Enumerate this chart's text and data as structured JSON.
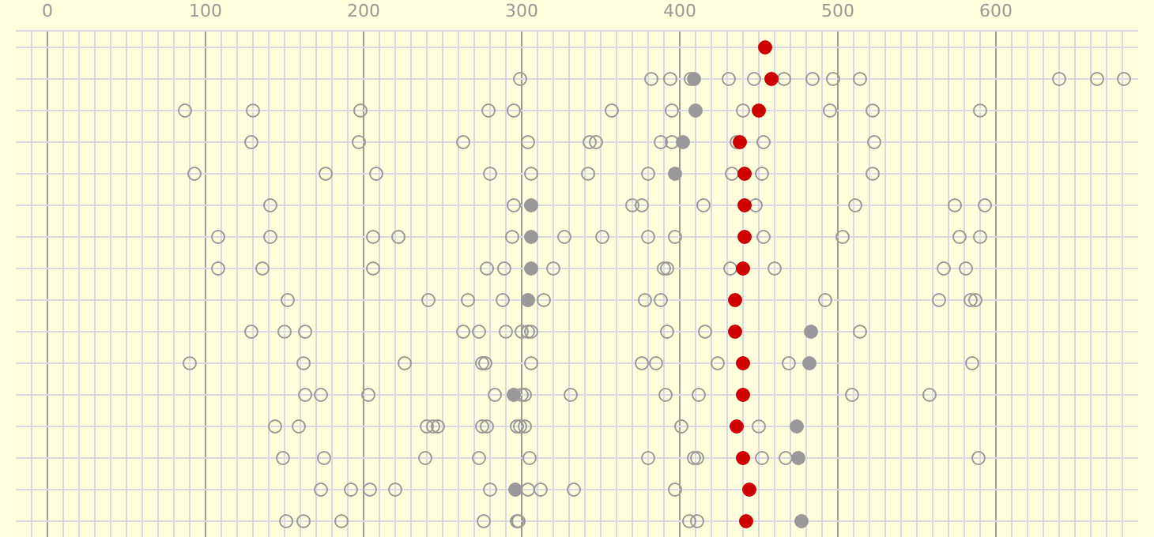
{
  "chart_data": {
    "type": "scatter",
    "orientation": "horizontal",
    "categories": [
      null,
      null,
      null,
      null,
      null,
      null,
      null,
      null,
      null,
      null,
      null,
      null,
      null,
      null,
      null,
      null
    ],
    "xlim": [
      -20,
      690
    ],
    "xticks": [
      0,
      100,
      200,
      300,
      400,
      500,
      600
    ],
    "grid": true,
    "marker": "circle",
    "tick_labels": "x",
    "series": [
      {
        "color": "#999999",
        "marker": "circle-open",
        "values": [
          null,
          299,
          87,
          129,
          93,
          141,
          108,
          108,
          152,
          129,
          90,
          163,
          144,
          149,
          173,
          151
        ]
      },
      {
        "color": "#999999",
        "marker": "circle-open",
        "values": [
          null,
          382,
          130,
          197,
          176,
          295,
          141,
          136,
          241,
          150,
          162,
          173,
          159,
          175,
          192,
          162
        ]
      },
      {
        "color": "#999999",
        "marker": "circle-open",
        "values": [
          null,
          394,
          198,
          263,
          208,
          370,
          206,
          206,
          266,
          163,
          226,
          203,
          240,
          239,
          204,
          186
        ]
      },
      {
        "color": "#999999",
        "marker": "circle-open",
        "values": [
          null,
          407,
          279,
          304,
          280,
          376,
          222,
          278,
          288,
          263,
          275,
          283,
          244,
          273,
          220,
          276
        ]
      },
      {
        "color": "#999999",
        "marker": "circle-open",
        "values": [
          null,
          431,
          295,
          343,
          306,
          415,
          294,
          289,
          314,
          273,
          277,
          300,
          247,
          305,
          280,
          297
        ]
      },
      {
        "color": "#999999",
        "marker": "circle-open",
        "values": [
          null,
          447,
          357,
          347,
          342,
          448,
          327,
          320,
          378,
          290,
          306,
          302,
          275,
          380,
          304,
          298
        ]
      },
      {
        "color": "#999999",
        "marker": "circle-open",
        "values": [
          null,
          466,
          395,
          388,
          380,
          511,
          351,
          390,
          388,
          300,
          376,
          331,
          278,
          409,
          312,
          406
        ]
      },
      {
        "color": "#999999",
        "marker": "circle-open",
        "values": [
          null,
          484,
          440,
          395,
          433,
          574,
          380,
          392,
          492,
          304,
          385,
          391,
          297,
          411,
          333,
          411
        ]
      },
      {
        "color": "#999999",
        "marker": "circle-open",
        "values": [
          null,
          497,
          495,
          436,
          452,
          593,
          397,
          432,
          564,
          306,
          424,
          412,
          299,
          452,
          397,
          null
        ]
      },
      {
        "color": "#999999",
        "marker": "circle-open",
        "values": [
          null,
          514,
          522,
          453,
          522,
          null,
          453,
          460,
          584,
          392,
          469,
          509,
          302,
          467,
          null,
          null
        ]
      },
      {
        "color": "#999999",
        "marker": "circle-open",
        "values": [
          null,
          640,
          590,
          523,
          null,
          null,
          503,
          567,
          587,
          416,
          585,
          558,
          401,
          589,
          null,
          null
        ]
      },
      {
        "color": "#999999",
        "marker": "circle-open",
        "values": [
          null,
          664,
          null,
          null,
          null,
          null,
          577,
          581,
          null,
          514,
          null,
          null,
          450,
          null,
          null,
          null
        ]
      },
      {
        "color": "#999999",
        "marker": "circle-open",
        "values": [
          null,
          681,
          null,
          null,
          null,
          null,
          590,
          null,
          null,
          null,
          null,
          null,
          null,
          null,
          null,
          null
        ]
      },
      {
        "color": "#999999",
        "marker": "circle",
        "values": [
          null,
          409,
          410,
          402,
          397,
          306,
          306,
          306,
          304,
          483,
          482,
          295,
          474,
          475,
          296,
          477
        ]
      },
      {
        "color": "#cc0000",
        "marker": "circle",
        "values": [
          454,
          458,
          450,
          438,
          441,
          441,
          441,
          440,
          435,
          435,
          440,
          440,
          436,
          440,
          444,
          442
        ]
      }
    ]
  }
}
